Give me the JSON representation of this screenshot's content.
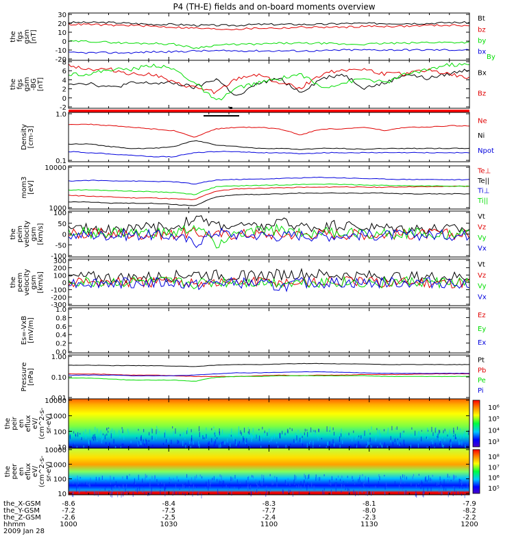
{
  "title": "P4 (TH-E) fields and on-board moments overview",
  "colors": {
    "black": "#000000",
    "red": "#e00000",
    "green": "#00dd00",
    "blue": "#0000dd",
    "bar_red": "#ff0000"
  },
  "chart_data": [
    {
      "type": "line",
      "ylabel": [
        "the",
        "fgs",
        "gsm",
        "[nT]"
      ],
      "yticks": [
        "30",
        "20",
        "10",
        "0",
        "-10",
        "-20"
      ],
      "ylim": [
        -20,
        30
      ],
      "series": [
        {
          "name": "Bt",
          "color": "black",
          "values": [
            20,
            20,
            20,
            19,
            18,
            18,
            17,
            17,
            17,
            18,
            18,
            18,
            18,
            19,
            19,
            19,
            19,
            19,
            20,
            20
          ]
        },
        {
          "name": "bz",
          "color": "red",
          "values": [
            18,
            18,
            17,
            17,
            16,
            15,
            14,
            13,
            13,
            14,
            14,
            15,
            15,
            15,
            16,
            16,
            16,
            17,
            17,
            17
          ]
        },
        {
          "name": "by",
          "color": "green",
          "values": [
            0,
            0,
            -1,
            -2,
            -2,
            -3,
            -7,
            -4,
            -3,
            -3,
            -2,
            -2,
            -2,
            -3,
            -3,
            -2,
            -2,
            -1,
            -1,
            -1
          ]
        },
        {
          "name": "bx",
          "color": "blue",
          "values": [
            -12,
            -12,
            -12,
            -12,
            -11,
            -11,
            -10,
            -10,
            -10,
            -10,
            -10,
            -10,
            -10,
            -9,
            -9,
            -9,
            -9,
            -9,
            -9,
            -9
          ]
        }
      ],
      "extra_legend": {
        "name": "By",
        "color": "green"
      }
    },
    {
      "type": "line",
      "ylabel": [
        "the",
        "fgs",
        "gsm",
        "-BG"
      ],
      "ylabel_units": "[nT]",
      "yticks": [
        "8",
        "6",
        "4",
        "2",
        "0",
        "-2"
      ],
      "ylim": [
        -2.5,
        8
      ],
      "series": [
        {
          "name": "Bx",
          "color": "black",
          "values": [
            3,
            3,
            2,
            3,
            3,
            3,
            2,
            4,
            0,
            3,
            4,
            1,
            4,
            5,
            2,
            3,
            5,
            4,
            5,
            6
          ]
        },
        {
          "name": "Bz",
          "color": "red",
          "values": [
            7,
            6,
            6,
            5,
            5,
            3,
            2,
            1,
            4,
            5,
            3,
            2,
            5,
            6,
            6,
            5,
            5,
            6,
            5,
            4
          ]
        },
        {
          "name": "",
          "color": "green",
          "values": [
            5,
            5,
            6,
            6,
            7,
            6,
            3,
            -1,
            2,
            3,
            4,
            5,
            2,
            3,
            4,
            3,
            5,
            6,
            7,
            7
          ]
        }
      ]
    },
    {
      "type": "line",
      "log": true,
      "ylabel": [
        "Density",
        "[cm-3]"
      ],
      "yticks": [
        "1.0",
        "0.1"
      ],
      "ylim": [
        0.1,
        1.3
      ],
      "series": [
        {
          "name": "Ne",
          "color": "red",
          "values": [
            0.7,
            0.7,
            0.65,
            0.6,
            0.55,
            0.5,
            0.35,
            0.55,
            0.6,
            0.6,
            0.55,
            0.4,
            0.55,
            0.55,
            0.6,
            0.5,
            0.6,
            0.6,
            0.65,
            0.65
          ]
        },
        {
          "name": "Ni",
          "color": "black",
          "values": [
            0.25,
            0.25,
            0.22,
            0.2,
            0.2,
            0.22,
            0.3,
            0.24,
            0.22,
            0.2,
            0.2,
            0.19,
            0.2,
            0.2,
            0.19,
            0.2,
            0.2,
            0.2,
            0.2,
            0.2
          ]
        },
        {
          "name": "Npot",
          "color": "blue",
          "values": [
            0.17,
            0.16,
            0.15,
            0.14,
            0.13,
            0.13,
            0.16,
            0.17,
            0.17,
            0.16,
            0.16,
            0.15,
            0.16,
            0.16,
            0.16,
            0.16,
            0.16,
            0.16,
            0.16,
            0.16
          ]
        }
      ]
    },
    {
      "type": "line",
      "log": true,
      "ylabel": [
        "mom3",
        "[eV]"
      ],
      "yticks": [
        "10000",
        "1000"
      ],
      "ylim": [
        1000,
        12000
      ],
      "series": [
        {
          "name": "Te⊥",
          "color": "red",
          "values": [
            2200,
            2100,
            2000,
            1900,
            1900,
            1800,
            1700,
            2800,
            3200,
            3300,
            3400,
            3500,
            3500,
            3600,
            3500,
            3500,
            3600,
            3600,
            3700,
            3700
          ]
        },
        {
          "name": "Te||",
          "color": "black",
          "values": [
            1500,
            1500,
            1400,
            1400,
            1400,
            1300,
            1200,
            2000,
            2300,
            2300,
            2400,
            2500,
            2500,
            2500,
            2500,
            2500,
            2400,
            2400,
            2400,
            2400
          ]
        },
        {
          "name": "Ti⊥",
          "color": "blue",
          "values": [
            5000,
            5200,
            5100,
            5000,
            4900,
            4800,
            4200,
            5300,
            5500,
            5600,
            5800,
            6000,
            6200,
            6000,
            5800,
            5600,
            5500,
            5500,
            5400,
            5400
          ]
        },
        {
          "name": "Ti||",
          "color": "green",
          "values": [
            3000,
            3000,
            2900,
            2800,
            2700,
            2600,
            2300,
            3600,
            3800,
            3900,
            4000,
            4100,
            4200,
            4100,
            4000,
            3900,
            3800,
            3800,
            3700,
            3700
          ]
        }
      ]
    },
    {
      "type": "line",
      "ylabel": [
        "the",
        "peim",
        "velocity",
        "gsm",
        "[km/s]"
      ],
      "yticks": [
        "100",
        "50",
        "0",
        "-50",
        "-100"
      ],
      "ylim": [
        -100,
        100
      ],
      "series": [
        {
          "name": "Vt",
          "color": "black",
          "values": [
            20,
            25,
            22,
            25,
            28,
            30,
            70,
            40,
            35,
            30,
            50,
            35,
            30,
            40,
            30,
            28,
            25,
            25,
            22,
            22
          ]
        },
        {
          "name": "Vz",
          "color": "red",
          "values": [
            0,
            2,
            0,
            -2,
            0,
            0,
            5,
            -5,
            0,
            0,
            -3,
            0,
            2,
            0,
            0,
            -2,
            0,
            0,
            0,
            0
          ]
        },
        {
          "name": "Vy",
          "color": "green",
          "values": [
            5,
            5,
            5,
            3,
            3,
            0,
            30,
            -40,
            0,
            10,
            20,
            5,
            8,
            5,
            5,
            3,
            3,
            3,
            3,
            3
          ]
        },
        {
          "name": "Vx",
          "color": "blue",
          "values": [
            -5,
            -5,
            -5,
            -5,
            -5,
            -10,
            -40,
            10,
            -5,
            -5,
            -10,
            -5,
            -10,
            -5,
            -5,
            -5,
            -5,
            -5,
            -5,
            -5
          ]
        }
      ]
    },
    {
      "type": "line",
      "ylabel": [
        "the",
        "peem",
        "velocity",
        "gsm",
        "[km/s]"
      ],
      "yticks": [
        "300",
        "200",
        "100",
        "0",
        "-100",
        "-200",
        "-300"
      ],
      "ylim": [
        -300,
        300
      ],
      "series": [
        {
          "name": "Vt",
          "color": "black",
          "values": [
            60,
            70,
            60,
            60,
            70,
            80,
            110,
            90,
            80,
            90,
            100,
            110,
            100,
            90,
            80,
            80,
            70,
            70,
            70,
            70
          ]
        },
        {
          "name": "Vz",
          "color": "red",
          "values": [
            0,
            5,
            0,
            -5,
            0,
            5,
            0,
            -5,
            0,
            5,
            0,
            -5,
            0,
            5,
            0,
            -5,
            0,
            5,
            0,
            0
          ]
        },
        {
          "name": "Vy",
          "color": "green",
          "values": [
            0,
            -5,
            0,
            5,
            0,
            -5,
            -20,
            0,
            5,
            0,
            -5,
            0,
            5,
            0,
            -5,
            0,
            5,
            0,
            -5,
            0
          ]
        },
        {
          "name": "Vx",
          "color": "blue",
          "values": [
            -5,
            0,
            -5,
            0,
            -10,
            -5,
            -40,
            -10,
            -5,
            -20,
            -60,
            -10,
            -5,
            -5,
            -10,
            -5,
            -5,
            -5,
            -5,
            -5
          ]
        }
      ]
    },
    {
      "type": "line",
      "ylabel": [
        "Es=-VxB",
        "[mV/m]"
      ],
      "yticks": [
        "1.0",
        "0.8",
        "0.6",
        "0.4",
        "0.2",
        "0.0"
      ],
      "ylim": [
        0,
        1
      ],
      "series": [
        {
          "name": "Ez",
          "color": "red",
          "values": []
        },
        {
          "name": "Ey",
          "color": "green",
          "values": []
        },
        {
          "name": "Ex",
          "color": "blue",
          "values": []
        }
      ]
    },
    {
      "type": "line",
      "log": true,
      "ylabel": [
        "Pressure",
        "[nPa]"
      ],
      "yticks": [
        "1.00",
        "0.10",
        "0.01"
      ],
      "ylim": [
        0.01,
        1.3
      ],
      "series": [
        {
          "name": "Pt",
          "color": "black",
          "values": [
            0.42,
            0.42,
            0.4,
            0.4,
            0.4,
            0.38,
            0.36,
            0.42,
            0.45,
            0.45,
            0.48,
            0.5,
            0.5,
            0.48,
            0.48,
            0.45,
            0.45,
            0.45,
            0.45,
            0.45
          ]
        },
        {
          "name": "Pb",
          "color": "red",
          "values": [
            0.16,
            0.16,
            0.15,
            0.14,
            0.14,
            0.13,
            0.12,
            0.12,
            0.12,
            0.13,
            0.14,
            0.13,
            0.14,
            0.14,
            0.15,
            0.15,
            0.15,
            0.16,
            0.16,
            0.16
          ]
        },
        {
          "name": "Pe",
          "color": "green",
          "values": [
            0.1,
            0.1,
            0.09,
            0.08,
            0.08,
            0.08,
            0.07,
            0.11,
            0.12,
            0.12,
            0.13,
            0.13,
            0.13,
            0.13,
            0.13,
            0.12,
            0.12,
            0.12,
            0.12,
            0.12
          ]
        },
        {
          "name": "Pi",
          "color": "blue",
          "values": [
            0.14,
            0.14,
            0.14,
            0.13,
            0.13,
            0.13,
            0.14,
            0.16,
            0.18,
            0.18,
            0.19,
            0.2,
            0.2,
            0.19,
            0.18,
            0.17,
            0.17,
            0.17,
            0.17,
            0.17
          ]
        }
      ]
    },
    {
      "type": "heatmap",
      "ylabel": [
        "the",
        "peir",
        "en",
        "eflux",
        "eV/",
        "(cm^2-s-",
        "sr-eV)"
      ],
      "yticks": [
        "10000",
        "1000",
        "100",
        "10"
      ],
      "colorbar_ticks": [
        "10⁶",
        "10⁵",
        "10⁴",
        "10³"
      ]
    },
    {
      "type": "heatmap",
      "ylabel": [
        "the",
        "peer",
        "en",
        "eflux",
        "eV/",
        "(cm^2-s-",
        "sr-eV)"
      ],
      "yticks": [
        "10000",
        "1000",
        "100",
        "10"
      ],
      "colorbar_ticks": [
        "10⁸",
        "10⁷",
        "10⁶",
        "10⁵"
      ]
    }
  ],
  "xaxis": {
    "rows": [
      {
        "label": "the_X-GSM",
        "values": [
          "-8.6",
          "-8.4",
          "-8.3",
          "-8.1",
          "-7.9"
        ]
      },
      {
        "label": "the_Y-GSM",
        "values": [
          "-7.2",
          "-7.5",
          "-7.7",
          "-8.0",
          "-8.2"
        ]
      },
      {
        "label": "the_Z-GSM",
        "values": [
          "-2.6",
          "-2.5",
          "-2.4",
          "-2.3",
          "-2.2"
        ]
      },
      {
        "label": "hhmm",
        "values": [
          "1000",
          "1030",
          "1100",
          "1130",
          "1200"
        ]
      }
    ],
    "date": "2009 Jan 28"
  }
}
